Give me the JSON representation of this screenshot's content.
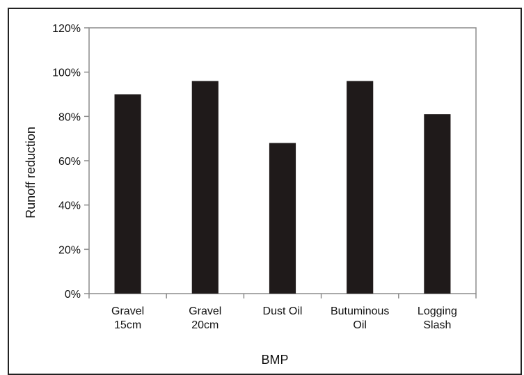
{
  "chart_data": {
    "type": "bar",
    "categories": [
      [
        "Gravel",
        "15cm"
      ],
      [
        "Gravel",
        "20cm"
      ],
      [
        "Dust Oil"
      ],
      [
        "Butuminous",
        "Oil"
      ],
      [
        "Logging",
        "Slash"
      ]
    ],
    "values": [
      90,
      96,
      68,
      96,
      81
    ],
    "xlabel": "BMP",
    "ylabel": "Runoff reduction",
    "ylim": [
      0,
      120
    ],
    "yticks": [
      0,
      20,
      40,
      60,
      80,
      100,
      120
    ],
    "ytick_labels": [
      "0%",
      "20%",
      "40%",
      "60%",
      "80%",
      "100%",
      "120%"
    ],
    "grid": false,
    "legend": "none",
    "bar_color": "#1f1a1a",
    "axis_color": "#8c8c8c"
  }
}
